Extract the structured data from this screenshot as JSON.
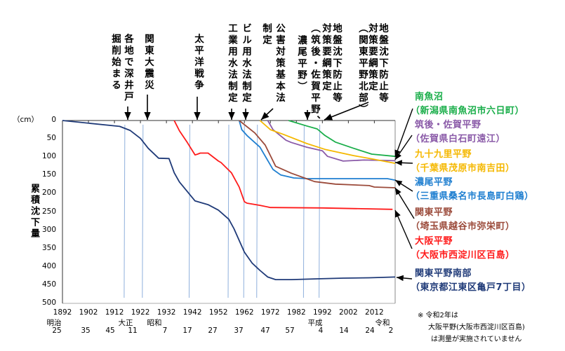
{
  "chart_data": {
    "type": "line",
    "ylabel": "累積沈下量",
    "yunit": "（cm）",
    "ylim": [
      0,
      500
    ],
    "yticks": [
      "0",
      "50",
      "100",
      "150",
      "200",
      "250",
      "300",
      "350",
      "400",
      "450",
      "500"
    ],
    "xlim": [
      1892,
      2020
    ],
    "xticks": [
      "1892",
      "1902",
      "1912",
      "1922",
      "1932",
      "1942",
      "1952",
      "1962",
      "1972",
      "1982",
      "1992",
      "2002",
      "2012"
    ],
    "eras": [
      "明治",
      "大正",
      "昭和",
      "平成",
      "令和"
    ],
    "era_years": [
      "25",
      "35",
      "45",
      "11",
      "7",
      "17",
      "27",
      "37",
      "47",
      "57",
      "4",
      "14",
      "24",
      "2"
    ],
    "events": [
      {
        "year": 1916,
        "lines": [
          "各地で深井戸",
          "掘削始まる"
        ]
      },
      {
        "year": 1923,
        "lines": [
          "関東大震災"
        ]
      },
      {
        "year": 1941,
        "lines": [
          "太平洋戦争"
        ]
      },
      {
        "year": 1956,
        "lines": [
          "工業用水法制定"
        ]
      },
      {
        "year": 1962,
        "lines": [
          "ビル用水法制定"
        ]
      },
      {
        "year": 1967,
        "lines": [
          "公害対策基本法",
          "制定"
        ]
      },
      {
        "year": 1985,
        "lines": [
          "地盤沈下防止等",
          "対策要綱策定",
          "（筑後・佐賀平野、",
          "濃尾平野）"
        ]
      },
      {
        "year": 1991,
        "lines": [
          "地盤沈下防止等",
          "対策要綱策定",
          "（関東平野北部）"
        ]
      }
    ],
    "series": [
      {
        "name": "南魚沼",
        "site": "（新潟県南魚沼市六日町）",
        "color": "#1aae4a",
        "x": [
          1979,
          1986,
          1990,
          1993,
          1997,
          2004,
          2011,
          2020
        ],
        "y": [
          0,
          15,
          23,
          41,
          59,
          76,
          92,
          98
        ]
      },
      {
        "name": "筑後・佐賀平野",
        "site": "（佐賀県白石町遠江）",
        "color": "#8a5aa8",
        "x": [
          1971,
          1973,
          1978,
          1980,
          1986,
          1992,
          1994,
          2000,
          2008,
          2020
        ],
        "y": [
          0,
          25,
          54,
          60,
          73,
          83,
          98,
          111,
          108,
          110
        ]
      },
      {
        "name": "九十九里平野",
        "site": "（千葉県茂原市南吉田）",
        "color": "#f5b800",
        "x": [
          1968,
          1972,
          1977,
          1986,
          1993,
          2004,
          2011,
          2020
        ],
        "y": [
          0,
          25,
          38,
          63,
          79,
          96,
          105,
          117
        ]
      },
      {
        "name": "濃尾平野",
        "site": "（三重県桑名市長島町白鶏）",
        "color": "#1f7fd0",
        "x": [
          1960,
          1961,
          1963,
          1968,
          1973,
          1976,
          1981,
          1986,
          2017,
          2020
        ],
        "y": [
          0,
          25,
          41,
          73,
          134,
          149,
          157,
          159,
          159,
          163
        ]
      },
      {
        "name": "関東平野",
        "site": "（埼玉県越谷市弥栄町）",
        "color": "#9b4a3a",
        "x": [
          1960,
          1966,
          1970,
          1974,
          1980,
          1989,
          1997,
          2010,
          2012,
          2020
        ],
        "y": [
          0,
          34,
          67,
          125,
          144,
          167,
          174,
          178,
          182,
          184
        ]
      },
      {
        "name": "大阪平野",
        "site": "（大阪市西淀川区百島）",
        "color": "#ff1a1a",
        "x": [
          1935,
          1937,
          1940,
          1943,
          1944,
          1945,
          1948,
          1952,
          1953,
          1957,
          1960,
          1962,
          1963,
          1968,
          1972,
          1992,
          2019
        ],
        "y": [
          0,
          28,
          60,
          94,
          92,
          89,
          89,
          111,
          115,
          143,
          182,
          222,
          226,
          232,
          238,
          239,
          243
        ]
      },
      {
        "name": "関東平野南部",
        "site": "（東京都江東区亀戸7丁目）",
        "color": "#1f3a78",
        "x": [
          1892,
          1914,
          1918,
          1922,
          1925,
          1929,
          1933,
          1935,
          1937,
          1943,
          1948,
          1952,
          1956,
          1958,
          1962,
          1965,
          1968,
          1971,
          1974,
          1980,
          1990,
          2000,
          2010,
          2020
        ],
        "y": [
          0,
          16,
          27,
          49,
          76,
          103,
          104,
          143,
          168,
          220,
          230,
          245,
          270,
          296,
          360,
          390,
          410,
          428,
          435,
          435,
          433,
          431,
          430,
          428
        ]
      }
    ],
    "note": [
      "※ 令和2年は",
      "大阪平野(大阪市西淀川区百島)",
      "は測量が実施されていません"
    ]
  }
}
